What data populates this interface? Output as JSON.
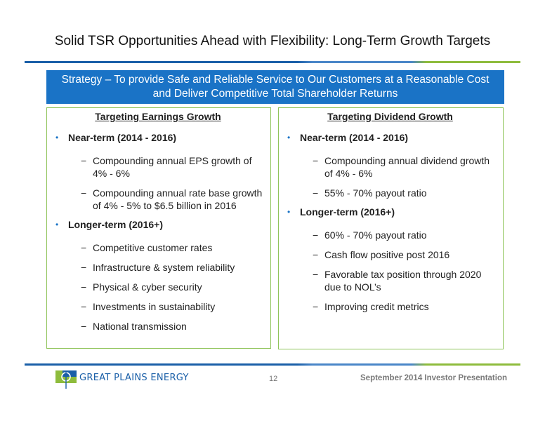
{
  "slide": {
    "title": "Solid TSR Opportunities Ahead with Flexibility: Long-Term Growth Targets",
    "banner_line1": "Strategy – To provide Safe and Reliable Service to Our Customers at a Reasonable Cost",
    "banner_line2": "and Deliver Competitive Total Shareholder Returns"
  },
  "earnings": {
    "heading": "Targeting Earnings Growth",
    "near_term": {
      "label": "Near-term (2014 - 2016)",
      "items": [
        "Compounding annual EPS growth of 4% - 6%",
        "Compounding annual rate base growth of 4% - 5% to $6.5 billion in 2016"
      ]
    },
    "long_term": {
      "label": "Longer-term (2016+)",
      "items": [
        "Competitive customer rates",
        "Infrastructure & system reliability",
        "Physical & cyber security",
        "Investments in sustainability",
        "National transmission"
      ]
    }
  },
  "dividend": {
    "heading": "Targeting Dividend Growth",
    "near_term": {
      "label": "Near-term (2014 - 2016)",
      "items": [
        "Compounding annual dividend growth of 4% - 6%",
        "55% - 70% payout ratio"
      ]
    },
    "long_term": {
      "label": "Longer-term (2016+)",
      "items": [
        "60% - 70% payout ratio",
        "Cash flow positive post 2016",
        "Favorable tax position through 2020 due to NOL’s",
        "Improving credit metrics"
      ]
    }
  },
  "footer": {
    "logo_text": "GREAT PLAINS ENERGY",
    "page_number": "12",
    "presentation": "September 2014 Investor Presentation"
  },
  "colors": {
    "banner": "#1a73c6",
    "panel_border": "#8fc45a",
    "rule_blue": "#1a5fa8",
    "rule_green": "#8ebc3c"
  }
}
